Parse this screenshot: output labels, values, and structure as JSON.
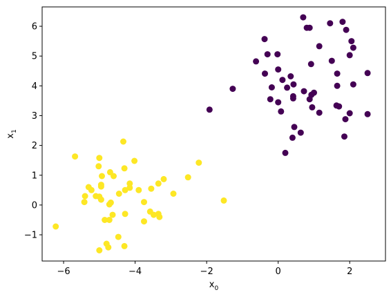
{
  "chart_data": {
    "type": "scatter",
    "title": "",
    "xlabel_main": "x",
    "xlabel_sub": "0",
    "ylabel_main": "x",
    "ylabel_sub": "1",
    "xlim": [
      -6.6,
      3.0
    ],
    "ylim": [
      -1.88,
      6.65
    ],
    "grid": false,
    "xticks": [
      -6,
      -4,
      -2,
      0,
      2
    ],
    "xtick_labels": [
      "−6",
      "−4",
      "−2",
      "0",
      "2"
    ],
    "yticks": [
      -1,
      0,
      1,
      2,
      3,
      4,
      5,
      6
    ],
    "ytick_labels": [
      "−1",
      "0",
      "1",
      "2",
      "3",
      "4",
      "5",
      "6"
    ],
    "colors": {
      "cluster_0": "#440154",
      "cluster_1": "#fde725"
    },
    "series": [
      {
        "color_key": "cluster_0",
        "points": [
          [
            0.7,
            6.3
          ],
          [
            1.8,
            6.15
          ],
          [
            1.45,
            6.1
          ],
          [
            0.8,
            5.95
          ],
          [
            0.88,
            5.95
          ],
          [
            1.9,
            5.88
          ],
          [
            -0.38,
            5.57
          ],
          [
            2.05,
            5.5
          ],
          [
            1.15,
            5.33
          ],
          [
            2.1,
            5.28
          ],
          [
            -0.3,
            5.06
          ],
          [
            -0.02,
            5.06
          ],
          [
            2.0,
            5.03
          ],
          [
            1.5,
            4.84
          ],
          [
            -0.62,
            4.82
          ],
          [
            0.92,
            4.73
          ],
          [
            2.5,
            4.43
          ],
          [
            -0.37,
            4.41
          ],
          [
            1.65,
            4.41
          ],
          [
            0.0,
            4.55
          ],
          [
            0.35,
            4.32
          ],
          [
            0.12,
            4.2
          ],
          [
            2.1,
            4.05
          ],
          [
            0.43,
            4.05
          ],
          [
            1.65,
            4.0
          ],
          [
            0.25,
            3.94
          ],
          [
            -0.18,
            3.95
          ],
          [
            0.72,
            3.82
          ],
          [
            1.0,
            3.77
          ],
          [
            0.93,
            3.7
          ],
          [
            0.42,
            3.65
          ],
          [
            0.42,
            3.58
          ],
          [
            -0.22,
            3.55
          ],
          [
            0.88,
            3.55
          ],
          [
            0.0,
            3.45
          ],
          [
            -1.27,
            3.9
          ],
          [
            1.63,
            3.34
          ],
          [
            1.7,
            3.31
          ],
          [
            0.95,
            3.28
          ],
          [
            -1.92,
            3.2
          ],
          [
            0.08,
            3.14
          ],
          [
            1.15,
            3.1
          ],
          [
            2.0,
            3.08
          ],
          [
            2.5,
            3.05
          ],
          [
            1.88,
            2.88
          ],
          [
            0.45,
            2.62
          ],
          [
            0.63,
            2.43
          ],
          [
            0.4,
            2.26
          ],
          [
            1.85,
            2.3
          ],
          [
            0.2,
            1.75
          ]
        ]
      },
      {
        "color_key": "cluster_1",
        "points": [
          [
            -4.33,
            2.13
          ],
          [
            -5.68,
            1.63
          ],
          [
            -5.0,
            1.58
          ],
          [
            -4.02,
            1.48
          ],
          [
            -2.22,
            1.42
          ],
          [
            -5.02,
            1.3
          ],
          [
            -4.3,
            1.23
          ],
          [
            -4.7,
            1.1
          ],
          [
            -4.93,
            0.97
          ],
          [
            -4.6,
            0.97
          ],
          [
            -2.52,
            0.93
          ],
          [
            -3.2,
            0.87
          ],
          [
            -3.35,
            0.72
          ],
          [
            -4.15,
            0.72
          ],
          [
            -4.95,
            0.68
          ],
          [
            -4.95,
            0.62
          ],
          [
            -5.3,
            0.6
          ],
          [
            -5.22,
            0.5
          ],
          [
            -4.15,
            0.58
          ],
          [
            -3.55,
            0.55
          ],
          [
            -3.9,
            0.5
          ],
          [
            -4.28,
            0.5
          ],
          [
            -4.45,
            0.38
          ],
          [
            -2.93,
            0.38
          ],
          [
            -5.4,
            0.3
          ],
          [
            -5.1,
            0.3
          ],
          [
            -5.0,
            0.28
          ],
          [
            -4.95,
            0.18
          ],
          [
            -1.52,
            0.15
          ],
          [
            -5.42,
            0.1
          ],
          [
            -3.75,
            0.1
          ],
          [
            -4.68,
            0.08
          ],
          [
            -4.72,
            0.02
          ],
          [
            -3.58,
            -0.22
          ],
          [
            -3.35,
            -0.3
          ],
          [
            -3.48,
            -0.33
          ],
          [
            -4.28,
            -0.3
          ],
          [
            -4.63,
            -0.33
          ],
          [
            -3.32,
            -0.4
          ],
          [
            -6.22,
            -0.72
          ],
          [
            -4.85,
            -0.5
          ],
          [
            -4.72,
            -0.5
          ],
          [
            -3.75,
            -0.55
          ],
          [
            -4.47,
            -1.07
          ],
          [
            -4.8,
            -1.3
          ],
          [
            -4.75,
            -1.42
          ],
          [
            -4.3,
            -1.38
          ],
          [
            -5.0,
            -1.52
          ]
        ]
      }
    ]
  }
}
